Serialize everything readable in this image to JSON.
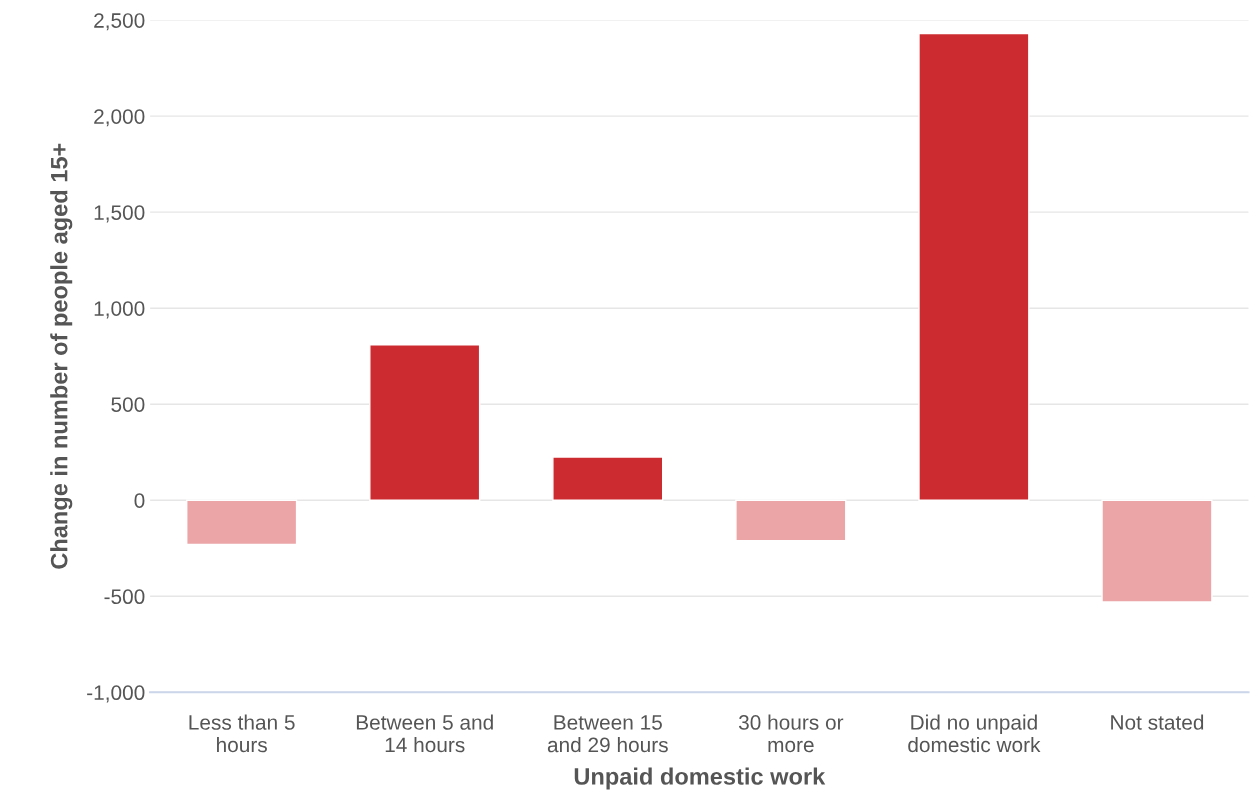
{
  "chart_data": {
    "type": "bar",
    "xlabel": "Unpaid domestic work",
    "ylabel": "Change in number of people aged 15+",
    "categories": [
      "Less than 5\nhours",
      "Between 5 and\n14 hours",
      "Between 15\nand 29 hours",
      "30 hours or\nmore",
      "Did no unpaid\ndomestic work",
      "Not stated"
    ],
    "values": [
      -230,
      810,
      225,
      -210,
      2430,
      -530
    ],
    "colors": [
      "#eba5a7",
      "#cc2c30",
      "#cc2c30",
      "#eba5a7",
      "#cc2c30",
      "#eba5a7"
    ],
    "ylim": [
      -1000,
      2500
    ],
    "yticks": [
      {
        "value": -1000,
        "label": "-1,000"
      },
      {
        "value": -500,
        "label": "-500"
      },
      0,
      500,
      {
        "value": 1000,
        "label": "1,000"
      },
      {
        "value": 1500,
        "label": "1,500"
      },
      {
        "value": 2000,
        "label": "2,000"
      },
      {
        "value": 2500,
        "label": "2,500"
      }
    ],
    "grid": "y",
    "legend": false
  }
}
